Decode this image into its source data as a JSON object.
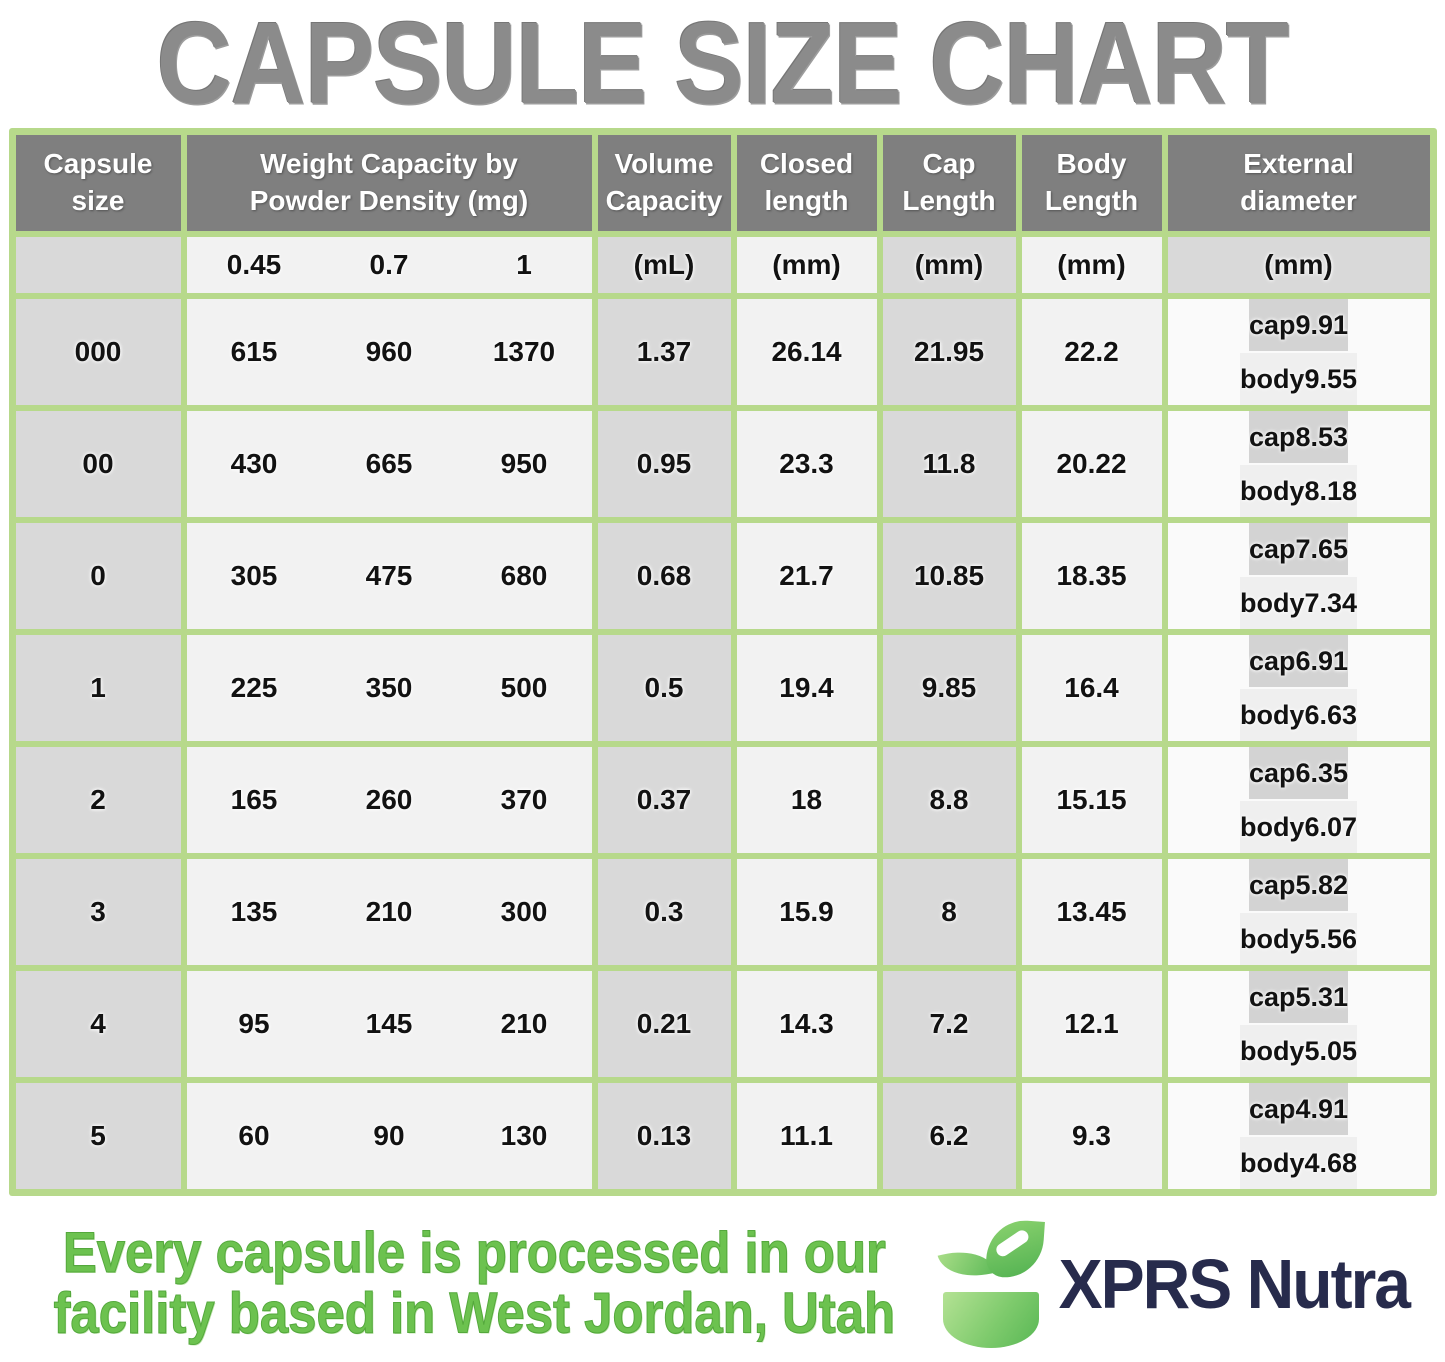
{
  "title": "CAPSULE SIZE CHART",
  "table": {
    "headers": {
      "capsule_size": "Capsule size",
      "weight": "Weight Capacity by Powder Density (mg)",
      "volume": "Volume Capacity",
      "closed": "Closed length",
      "cap": "Cap Length",
      "body": "Body Length",
      "external": "External diameter"
    },
    "units": {
      "weight_densities": [
        "0.45",
        "0.7",
        "1"
      ],
      "volume": "(mL)",
      "closed": "(mm)",
      "cap": "(mm)",
      "body": "(mm)",
      "external": "(mm)"
    },
    "sub_labels": {
      "cap": "cap",
      "body": "body"
    },
    "rows": [
      {
        "size": "000",
        "w045": "615",
        "w07": "960",
        "w1": "1370",
        "volume": "1.37",
        "closed": "26.14",
        "cap_length": "21.95",
        "body_length": "22.2",
        "ext_cap": "9.91",
        "ext_body": "9.55"
      },
      {
        "size": "00",
        "w045": "430",
        "w07": "665",
        "w1": "950",
        "volume": "0.95",
        "closed": "23.3",
        "cap_length": "11.8",
        "body_length": "20.22",
        "ext_cap": "8.53",
        "ext_body": "8.18"
      },
      {
        "size": "0",
        "w045": "305",
        "w07": "475",
        "w1": "680",
        "volume": "0.68",
        "closed": "21.7",
        "cap_length": "10.85",
        "body_length": "18.35",
        "ext_cap": "7.65",
        "ext_body": "7.34"
      },
      {
        "size": "1",
        "w045": "225",
        "w07": "350",
        "w1": "500",
        "volume": "0.5",
        "closed": "19.4",
        "cap_length": "9.85",
        "body_length": "16.4",
        "ext_cap": "6.91",
        "ext_body": "6.63"
      },
      {
        "size": "2",
        "w045": "165",
        "w07": "260",
        "w1": "370",
        "volume": "0.37",
        "closed": "18",
        "cap_length": "8.8",
        "body_length": "15.15",
        "ext_cap": "6.35",
        "ext_body": "6.07"
      },
      {
        "size": "3",
        "w045": "135",
        "w07": "210",
        "w1": "300",
        "volume": "0.3",
        "closed": "15.9",
        "cap_length": "8",
        "body_length": "13.45",
        "ext_cap": "5.82",
        "ext_body": "5.56"
      },
      {
        "size": "4",
        "w045": "95",
        "w07": "145",
        "w1": "210",
        "volume": "0.21",
        "closed": "14.3",
        "cap_length": "7.2",
        "body_length": "12.1",
        "ext_cap": "5.31",
        "ext_body": "5.05"
      },
      {
        "size": "5",
        "w045": "60",
        "w07": "90",
        "w1": "130",
        "volume": "0.13",
        "closed": "11.1",
        "cap_length": "6.2",
        "body_length": "9.3",
        "ext_cap": "4.91",
        "ext_body": "4.68"
      }
    ]
  },
  "footer": {
    "tagline_line1": "Every capsule is processed in our",
    "tagline_line2": "facility based in West Jordan, Utah",
    "brand": "XPRS Nutra"
  },
  "colors": {
    "border_green": "#b7d98b",
    "header_gray": "#7f7f7f",
    "cell_gray": "#d9d9d9",
    "cell_light": "#f2f2f2",
    "ext_cap_gray": "#d3d3d3",
    "ext_body_light": "#efefef",
    "title_gray": "#8b8b8b",
    "footer_green": "#6cc24f",
    "brand_navy": "#272b4c",
    "logo_green_light": "#b4e294",
    "logo_green_dark": "#58b754"
  },
  "chart_data": {
    "type": "table",
    "title": "CAPSULE SIZE CHART",
    "columns": [
      "Capsule size",
      "Weight Capacity (mg) at powder density 0.45",
      "Weight Capacity (mg) at powder density 0.7",
      "Weight Capacity (mg) at powder density 1",
      "Volume Capacity (mL)",
      "Closed length (mm)",
      "Cap Length (mm)",
      "Body Length (mm)",
      "External diameter cap (mm)",
      "External diameter body (mm)"
    ],
    "rows": [
      [
        "000",
        615,
        960,
        1370,
        1.37,
        26.14,
        21.95,
        22.2,
        9.91,
        9.55
      ],
      [
        "00",
        430,
        665,
        950,
        0.95,
        23.3,
        11.8,
        20.22,
        8.53,
        8.18
      ],
      [
        "0",
        305,
        475,
        680,
        0.68,
        21.7,
        10.85,
        18.35,
        7.65,
        7.34
      ],
      [
        "1",
        225,
        350,
        500,
        0.5,
        19.4,
        9.85,
        16.4,
        6.91,
        6.63
      ],
      [
        "2",
        165,
        260,
        370,
        0.37,
        18,
        8.8,
        15.15,
        6.35,
        6.07
      ],
      [
        "3",
        135,
        210,
        300,
        0.3,
        15.9,
        8,
        13.45,
        5.82,
        5.56
      ],
      [
        "4",
        95,
        145,
        210,
        0.21,
        14.3,
        7.2,
        12.1,
        5.31,
        5.05
      ],
      [
        "5",
        60,
        90,
        130,
        0.13,
        11.1,
        6.2,
        9.3,
        4.91,
        4.68
      ]
    ]
  }
}
